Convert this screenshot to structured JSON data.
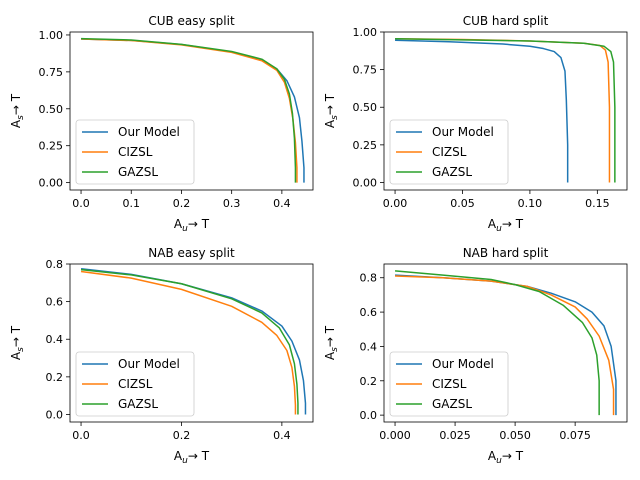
{
  "chart_data": [
    {
      "type": "line",
      "title": "CUB easy split",
      "xlabel": "A_u→ T",
      "ylabel": "A_s→ T",
      "xlim": [
        -0.022,
        0.462
      ],
      "ylim": [
        -0.05,
        1.02
      ],
      "xticks": [
        0.0,
        0.1,
        0.2,
        0.3,
        0.4
      ],
      "xtick_labels": [
        "0.0",
        "0.1",
        "0.2",
        "0.3",
        "0.4"
      ],
      "yticks": [
        0.0,
        0.25,
        0.5,
        0.75,
        1.0
      ],
      "ytick_labels": [
        "0.00",
        "0.25",
        "0.50",
        "0.75",
        "1.00"
      ],
      "legend_position": "lower-left",
      "series": [
        {
          "name": "Our Model",
          "color": "#1f77b4",
          "x": [
            0.0,
            0.1,
            0.2,
            0.3,
            0.36,
            0.39,
            0.41,
            0.425,
            0.435,
            0.44,
            0.444,
            0.444
          ],
          "y": [
            0.973,
            0.963,
            0.935,
            0.885,
            0.83,
            0.77,
            0.69,
            0.58,
            0.44,
            0.28,
            0.1,
            0.0
          ]
        },
        {
          "name": "CIZSL",
          "color": "#ff7f0e",
          "x": [
            0.0,
            0.1,
            0.2,
            0.3,
            0.36,
            0.39,
            0.405,
            0.415,
            0.422,
            0.427,
            0.43,
            0.43
          ],
          "y": [
            0.973,
            0.962,
            0.933,
            0.882,
            0.825,
            0.76,
            0.68,
            0.57,
            0.43,
            0.27,
            0.1,
            0.0
          ]
        },
        {
          "name": "GAZSL",
          "color": "#2ca02c",
          "x": [
            0.0,
            0.1,
            0.2,
            0.3,
            0.36,
            0.39,
            0.405,
            0.415,
            0.421,
            0.425,
            0.427,
            0.427
          ],
          "y": [
            0.975,
            0.966,
            0.936,
            0.888,
            0.836,
            0.77,
            0.7,
            0.6,
            0.47,
            0.3,
            0.1,
            0.0
          ]
        }
      ]
    },
    {
      "type": "line",
      "title": "CUB hard split",
      "xlabel": "A_u→ T",
      "ylabel": "A_s→ T",
      "xlim": [
        -0.0082,
        0.172
      ],
      "ylim": [
        -0.05,
        1.0
      ],
      "xticks": [
        0.0,
        0.05,
        0.1,
        0.15
      ],
      "xtick_labels": [
        "0.00",
        "0.05",
        "0.10",
        "0.15"
      ],
      "yticks": [
        0.0,
        0.25,
        0.5,
        0.75,
        1.0
      ],
      "ytick_labels": [
        "0.00",
        "0.25",
        "0.50",
        "0.75",
        "1.00"
      ],
      "legend_position": "lower-left",
      "series": [
        {
          "name": "Our Model",
          "color": "#1f77b4",
          "x": [
            0.0,
            0.04,
            0.08,
            0.1,
            0.11,
            0.118,
            0.123,
            0.126,
            0.127,
            0.128,
            0.128
          ],
          "y": [
            0.945,
            0.935,
            0.92,
            0.905,
            0.89,
            0.87,
            0.83,
            0.74,
            0.55,
            0.25,
            0.0
          ]
        },
        {
          "name": "CIZSL",
          "color": "#ff7f0e",
          "x": [
            0.0,
            0.05,
            0.1,
            0.14,
            0.152,
            0.156,
            0.158,
            0.159,
            0.159
          ],
          "y": [
            0.955,
            0.95,
            0.94,
            0.925,
            0.91,
            0.88,
            0.8,
            0.5,
            0.0
          ]
        },
        {
          "name": "GAZSL",
          "color": "#2ca02c",
          "x": [
            0.0,
            0.05,
            0.1,
            0.14,
            0.155,
            0.16,
            0.162,
            0.163,
            0.163
          ],
          "y": [
            0.955,
            0.948,
            0.94,
            0.925,
            0.905,
            0.87,
            0.8,
            0.5,
            0.0
          ]
        }
      ]
    },
    {
      "type": "line",
      "title": "NAB easy split",
      "xlabel": "A_u→ T",
      "ylabel": "A_s→ T",
      "xlim": [
        -0.022,
        0.462
      ],
      "ylim": [
        -0.04,
        0.8
      ],
      "xticks": [
        0.0,
        0.2,
        0.4
      ],
      "xtick_labels": [
        "0.0",
        "0.2",
        "0.4"
      ],
      "yticks": [
        0.0,
        0.2,
        0.4,
        0.6,
        0.8
      ],
      "ytick_labels": [
        "0.0",
        "0.2",
        "0.4",
        "0.6",
        "0.8"
      ],
      "legend_position": "lower-left",
      "series": [
        {
          "name": "Our Model",
          "color": "#1f77b4",
          "x": [
            0.0,
            0.1,
            0.2,
            0.3,
            0.36,
            0.4,
            0.42,
            0.435,
            0.443,
            0.447,
            0.447
          ],
          "y": [
            0.775,
            0.745,
            0.695,
            0.62,
            0.55,
            0.47,
            0.39,
            0.29,
            0.18,
            0.06,
            0.0
          ]
        },
        {
          "name": "CIZSL",
          "color": "#ff7f0e",
          "x": [
            0.0,
            0.1,
            0.2,
            0.3,
            0.36,
            0.39,
            0.41,
            0.42,
            0.425,
            0.427,
            0.427
          ],
          "y": [
            0.76,
            0.725,
            0.665,
            0.575,
            0.49,
            0.42,
            0.34,
            0.25,
            0.15,
            0.05,
            0.0
          ]
        },
        {
          "name": "GAZSL",
          "color": "#2ca02c",
          "x": [
            0.0,
            0.1,
            0.2,
            0.3,
            0.36,
            0.395,
            0.415,
            0.425,
            0.43,
            0.432,
            0.432
          ],
          "y": [
            0.77,
            0.742,
            0.695,
            0.615,
            0.54,
            0.46,
            0.37,
            0.27,
            0.16,
            0.06,
            0.0
          ]
        }
      ]
    },
    {
      "type": "line",
      "title": "NAB hard split",
      "xlabel": "A_u→ T",
      "ylabel": "A_s→ T",
      "xlim": [
        -0.0046,
        0.0966
      ],
      "ylim": [
        -0.04,
        0.88
      ],
      "xticks": [
        0.0,
        0.025,
        0.05,
        0.075
      ],
      "xtick_labels": [
        "0.000",
        "0.025",
        "0.050",
        "0.075"
      ],
      "yticks": [
        0.0,
        0.2,
        0.4,
        0.6,
        0.8
      ],
      "ytick_labels": [
        "0.0",
        "0.2",
        "0.4",
        "0.6",
        "0.8"
      ],
      "legend_position": "lower-left",
      "series": [
        {
          "name": "Our Model",
          "color": "#1f77b4",
          "x": [
            0.0,
            0.02,
            0.04,
            0.055,
            0.065,
            0.075,
            0.082,
            0.087,
            0.09,
            0.092,
            0.092
          ],
          "y": [
            0.815,
            0.8,
            0.78,
            0.75,
            0.71,
            0.66,
            0.6,
            0.52,
            0.4,
            0.2,
            0.0
          ]
        },
        {
          "name": "CIZSL",
          "color": "#ff7f0e",
          "x": [
            0.0,
            0.02,
            0.04,
            0.055,
            0.065,
            0.075,
            0.08,
            0.085,
            0.089,
            0.091,
            0.091
          ],
          "y": [
            0.81,
            0.8,
            0.78,
            0.75,
            0.7,
            0.63,
            0.56,
            0.46,
            0.32,
            0.15,
            0.0
          ]
        },
        {
          "name": "GAZSL",
          "color": "#2ca02c",
          "x": [
            0.0,
            0.02,
            0.04,
            0.05,
            0.06,
            0.07,
            0.078,
            0.082,
            0.084,
            0.085,
            0.085
          ],
          "y": [
            0.84,
            0.815,
            0.79,
            0.76,
            0.72,
            0.64,
            0.54,
            0.45,
            0.35,
            0.2,
            0.0
          ]
        }
      ]
    }
  ]
}
